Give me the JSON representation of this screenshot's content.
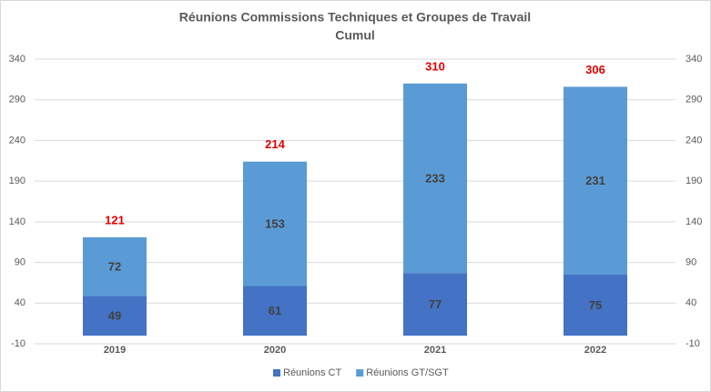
{
  "chart_data": {
    "type": "stacked_bar",
    "title": "Réunions Commissions Techniques et Groupes de Travail",
    "subtitle": "Cumul",
    "categories": [
      "2019",
      "2020",
      "2021",
      "2022"
    ],
    "series": [
      {
        "name": "Réunions CT",
        "color": "#4472c4",
        "values": [
          49,
          61,
          77,
          75
        ]
      },
      {
        "name": "Réunions GT/SGT",
        "color": "#5b9bd5",
        "values": [
          72,
          153,
          233,
          231
        ]
      }
    ],
    "totals": [
      121,
      214,
      310,
      306
    ],
    "ylim": [
      -10,
      340
    ],
    "yticks": [
      -10,
      40,
      90,
      140,
      190,
      240,
      290,
      340
    ],
    "y2lim": [
      -10,
      340
    ],
    "y2ticks": [
      -10,
      40,
      90,
      140,
      190,
      240,
      290,
      340
    ],
    "grid": true,
    "legend": "bottom"
  }
}
